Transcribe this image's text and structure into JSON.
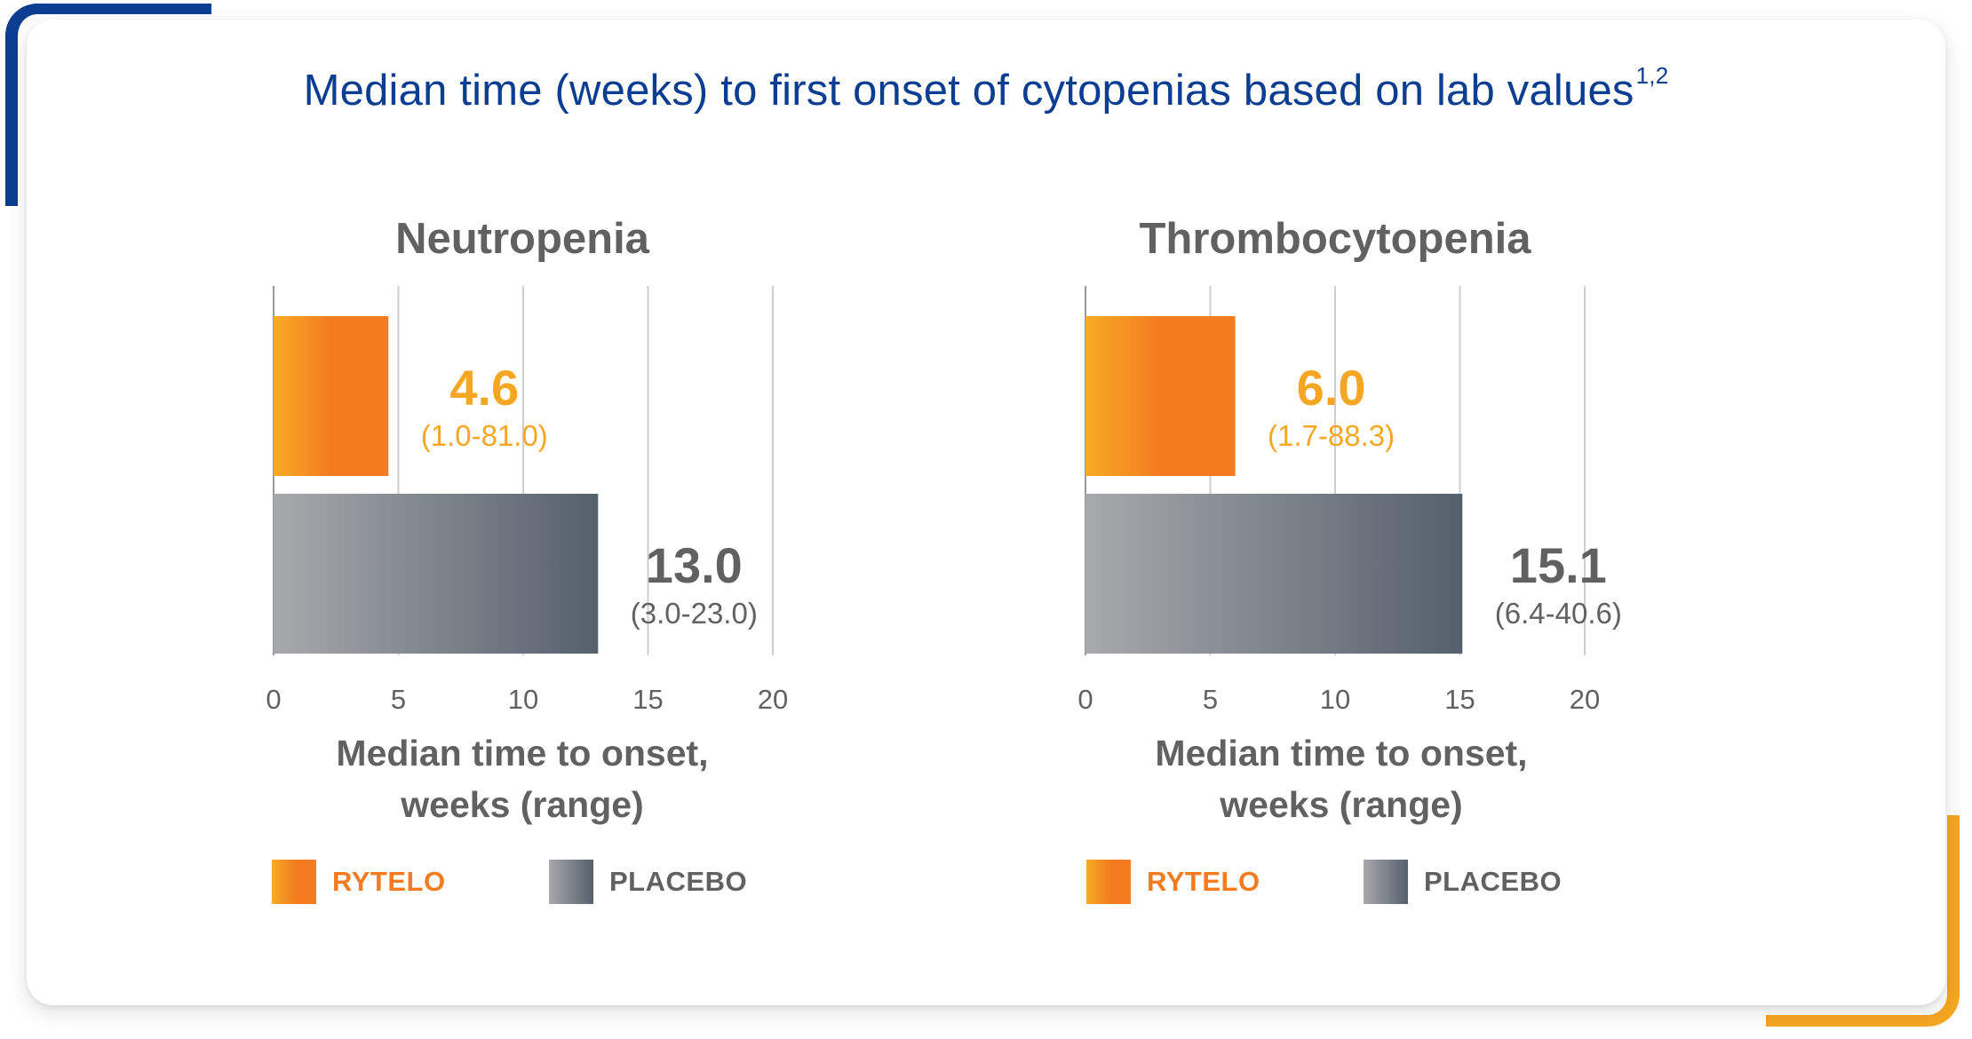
{
  "title": "Median time (weeks) to first onset of cytopenias based on lab values",
  "title_superscript": "1,2",
  "colors": {
    "title": "#0b3d91",
    "rytelo_start": "#f6ac24",
    "rytelo_end": "#f47b20",
    "placebo_start": "#a7a9ac",
    "placebo_end": "#55606c",
    "rytelo_text": "#f5a623",
    "rytelo_legend_text": "#f47b20",
    "placebo_text": "#616161",
    "grid": "#cfcfcf",
    "axis_text": "#616161"
  },
  "legend": [
    {
      "key": "rytelo",
      "label": "RYTELO"
    },
    {
      "key": "placebo",
      "label": "PLACEBO"
    }
  ],
  "chart_data": [
    {
      "type": "bar",
      "orientation": "horizontal",
      "title": "Neutropenia",
      "xlabel": [
        "Median time to onset,",
        "weeks (range)"
      ],
      "xlim": [
        0,
        20
      ],
      "xticks": [
        0,
        5,
        10,
        15,
        20
      ],
      "series": [
        {
          "name": "RYTELO",
          "value": 4.6,
          "label": "4.6",
          "range": "(1.0-81.0)"
        },
        {
          "name": "PLACEBO",
          "value": 13.0,
          "label": "13.0",
          "range": "(3.0-23.0)"
        }
      ],
      "grid": true
    },
    {
      "type": "bar",
      "orientation": "horizontal",
      "title": "Thrombocytopenia",
      "xlabel": [
        "Median time to onset,",
        "weeks (range)"
      ],
      "xlim": [
        0,
        20
      ],
      "xticks": [
        0,
        5,
        10,
        15,
        20
      ],
      "series": [
        {
          "name": "RYTELO",
          "value": 6.0,
          "label": "6.0",
          "range": "(1.7-88.3)"
        },
        {
          "name": "PLACEBO",
          "value": 15.1,
          "label": "15.1",
          "range": "(6.4-40.6)"
        }
      ],
      "grid": true
    }
  ]
}
